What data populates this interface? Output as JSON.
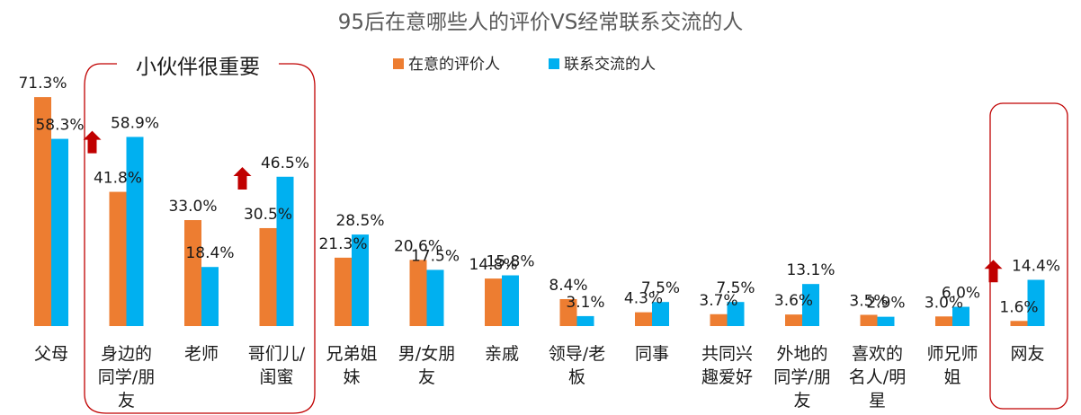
{
  "chart_data": {
    "type": "bar",
    "title": "95后在意哪些人的评价VS经常联系交流的人",
    "categories": [
      [
        "父母"
      ],
      [
        "身边的",
        "同学/朋",
        "友"
      ],
      [
        "老师"
      ],
      [
        "哥们儿/",
        "闺蜜"
      ],
      [
        "兄弟姐",
        "妹"
      ],
      [
        "男/女朋",
        "友"
      ],
      [
        "亲戚"
      ],
      [
        "领导/老",
        "板"
      ],
      [
        "同事"
      ],
      [
        "共同兴",
        "趣爱好"
      ],
      [
        "外地的",
        "同学/朋",
        "友"
      ],
      [
        "喜欢的",
        "名人/明",
        "星"
      ],
      [
        "师兄师",
        "姐"
      ],
      [
        "网友"
      ]
    ],
    "series": [
      {
        "name": "在意的评价人",
        "color": "#ED7D31",
        "values": [
          71.3,
          41.8,
          33.0,
          30.5,
          21.3,
          20.6,
          14.8,
          8.4,
          4.3,
          3.7,
          3.6,
          3.5,
          3.0,
          1.6
        ],
        "labels": [
          "71.3%",
          "41.8%",
          "33.0%",
          "30.5%",
          "21.3%",
          "20.6%",
          "14.8%",
          "8.4%",
          "4.3%",
          "3.7%",
          "3.6%",
          "3.5%",
          "3.0%",
          "1.6%"
        ]
      },
      {
        "name": "联系交流的人",
        "color": "#00B0F0",
        "values": [
          58.3,
          58.9,
          18.4,
          46.5,
          28.5,
          17.5,
          15.8,
          3.1,
          7.5,
          7.5,
          13.1,
          2.9,
          6.0,
          14.4
        ],
        "labels": [
          "58.3%",
          "58.9%",
          "18.4%",
          "46.5%",
          "28.5%",
          "17.5%",
          "15.8%",
          "3.1%",
          "7.5%",
          "7.5%",
          "13.1%",
          "2.9%",
          "6.0%",
          "14.4%"
        ]
      }
    ],
    "ylim": [
      0,
      80
    ],
    "legend_position": "top-center",
    "grid": false
  },
  "annotations": {
    "group_label": "小伙伴很重要",
    "highlight_color": "#C00000",
    "arrow_color": "#C00000"
  }
}
